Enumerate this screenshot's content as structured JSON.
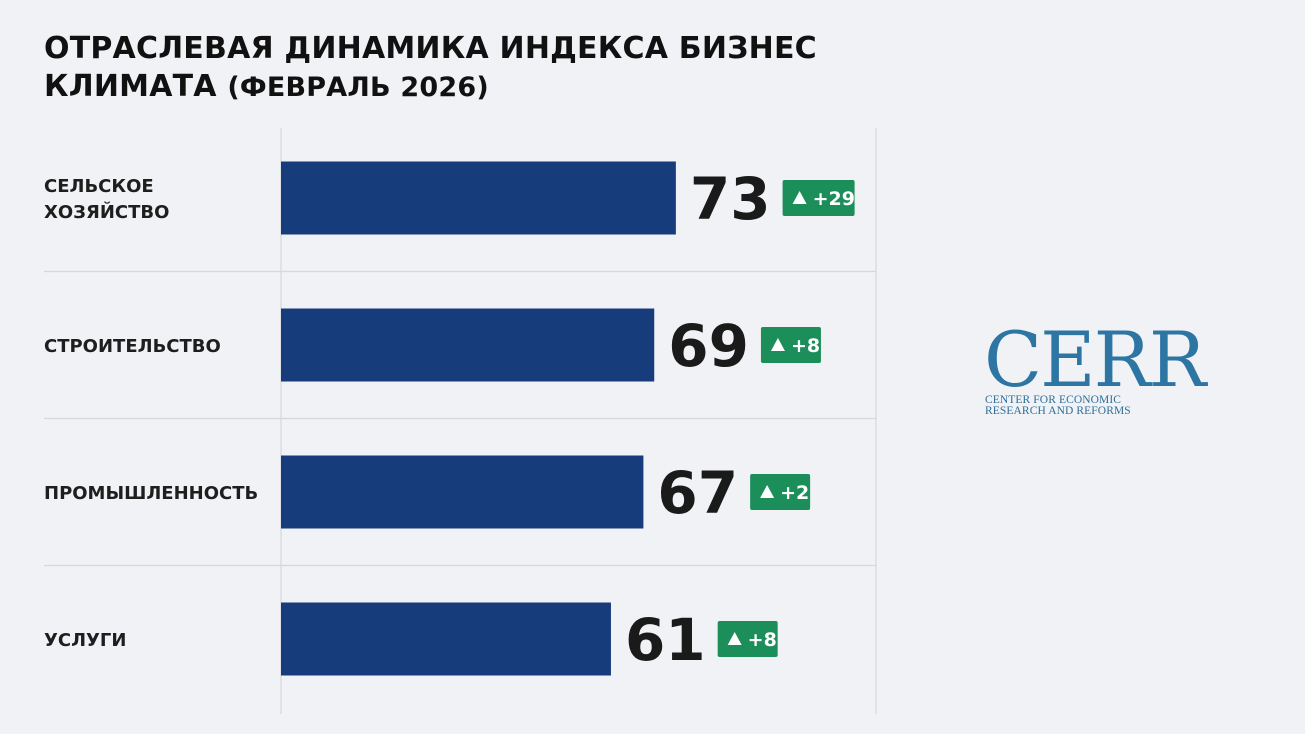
{
  "header": {
    "title_line1": "ОТРАСЛЕВАЯ ДИНАМИКА ИНДЕКСА БИЗНЕС",
    "title_line2": "КЛИМАТА",
    "title_period": "(ФЕВРАЛЬ 2026)"
  },
  "chart_data": {
    "type": "bar",
    "orientation": "horizontal",
    "title": "ОТРАСЛЕВАЯ ДИНАМИКА ИНДЕКСА БИЗНЕС КЛИМАТА (ФЕВРАЛЬ 2026)",
    "categories": [
      [
        "СЕЛЬСКОЕ",
        "ХОЗЯЙСТВО"
      ],
      [
        "СТРОИТЕЛЬСТВО"
      ],
      [
        "ПРОМЫШЛЕННОСТЬ"
      ],
      [
        "УСЛУГИ"
      ]
    ],
    "values": [
      73,
      69,
      67,
      61
    ],
    "changes": [
      "+29",
      "+8",
      "+2",
      "+8"
    ],
    "change_icon": "triangle-up-icon",
    "xlim": [
      0,
      110
    ],
    "grid": true,
    "colors": {
      "bar": "#163c7b",
      "badge": "#1b8e5a",
      "grid": "#d5d7dc"
    }
  },
  "logo": {
    "word": "CERR",
    "line1": "CENTER FOR ECONOMIC",
    "line2": "RESEARCH AND REFORMS",
    "color": "#2d75a3"
  }
}
